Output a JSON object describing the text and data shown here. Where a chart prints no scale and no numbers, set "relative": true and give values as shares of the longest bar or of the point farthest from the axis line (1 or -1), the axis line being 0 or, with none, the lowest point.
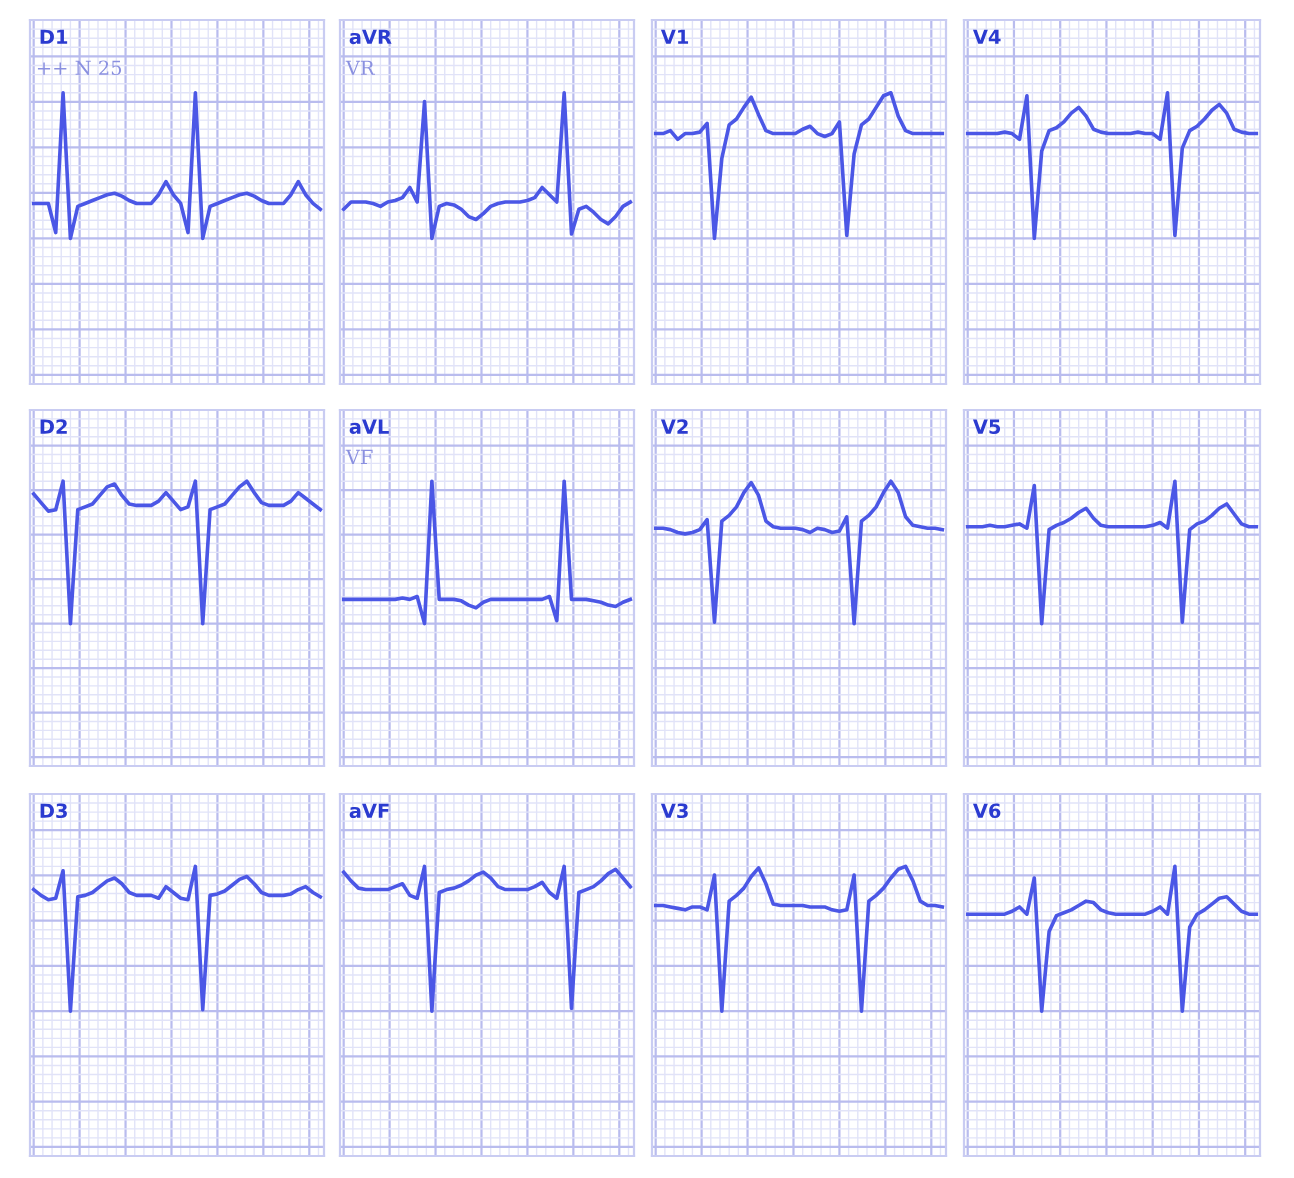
{
  "chart_data": [
    {
      "type": "line",
      "title": "D1",
      "annotations": [
        "++ N 25"
      ],
      "relative": true,
      "grid": true,
      "tick_labels": false,
      "categories": [
        null,
        null,
        null,
        null,
        null,
        null,
        null,
        null,
        null,
        null,
        null,
        null,
        null,
        null,
        null,
        null,
        null,
        null,
        null,
        null,
        null,
        null,
        null,
        null,
        null,
        null,
        null,
        null,
        null,
        null,
        null,
        null,
        null,
        null,
        null,
        null,
        null,
        null,
        null,
        null
      ],
      "series": [
        {
          "color": "#4b57e6",
          "values": [
            0.24,
            0.24,
            0.24,
            0.04,
            1.0,
            0.0,
            0.22,
            0.24,
            0.26,
            0.28,
            0.3,
            0.31,
            0.29,
            0.26,
            0.24,
            0.24,
            0.24,
            0.3,
            0.39,
            0.3,
            0.24,
            0.04,
            1.0,
            0.0,
            0.22,
            0.24,
            0.26,
            0.28,
            0.3,
            0.31,
            0.29,
            0.26,
            0.24,
            0.24,
            0.24,
            0.3,
            0.39,
            0.3,
            0.24,
            0.2
          ]
        }
      ]
    },
    {
      "type": "line",
      "title": "aVR",
      "annotations": [
        "VR"
      ],
      "relative": true,
      "grid": true,
      "tick_labels": false,
      "categories": [
        null,
        null,
        null,
        null,
        null,
        null,
        null,
        null,
        null,
        null,
        null,
        null,
        null,
        null,
        null,
        null,
        null,
        null,
        null,
        null,
        null,
        null,
        null,
        null,
        null,
        null,
        null,
        null,
        null,
        null,
        null,
        null,
        null,
        null,
        null,
        null,
        null,
        null,
        null,
        null
      ],
      "series": [
        {
          "color": "#4b57e6",
          "values": [
            0.2,
            0.25,
            0.25,
            0.25,
            0.24,
            0.22,
            0.25,
            0.26,
            0.28,
            0.35,
            0.25,
            0.94,
            0.0,
            0.22,
            0.24,
            0.23,
            0.2,
            0.15,
            0.13,
            0.17,
            0.22,
            0.24,
            0.25,
            0.25,
            0.25,
            0.26,
            0.28,
            0.35,
            0.3,
            0.25,
            1.0,
            0.03,
            0.2,
            0.22,
            0.18,
            0.13,
            0.1,
            0.15,
            0.22,
            0.25
          ]
        }
      ]
    },
    {
      "type": "line",
      "title": "V1",
      "relative": true,
      "grid": true,
      "tick_labels": false,
      "categories": [
        null,
        null,
        null,
        null,
        null,
        null,
        null,
        null,
        null,
        null,
        null,
        null,
        null,
        null,
        null,
        null,
        null,
        null,
        null,
        null,
        null,
        null,
        null,
        null,
        null,
        null,
        null,
        null,
        null,
        null,
        null,
        null,
        null,
        null,
        null,
        null,
        null,
        null,
        null,
        null
      ],
      "series": [
        {
          "color": "#4b57e6",
          "values": [
            0.72,
            0.72,
            0.74,
            0.68,
            0.72,
            0.72,
            0.73,
            0.79,
            0.0,
            0.55,
            0.78,
            0.82,
            0.9,
            0.97,
            0.85,
            0.74,
            0.72,
            0.72,
            0.72,
            0.72,
            0.75,
            0.77,
            0.72,
            0.7,
            0.72,
            0.8,
            0.02,
            0.58,
            0.78,
            0.82,
            0.9,
            0.98,
            1.0,
            0.84,
            0.74,
            0.72,
            0.72,
            0.72,
            0.72,
            0.72
          ]
        }
      ]
    },
    {
      "type": "line",
      "title": "V4",
      "relative": true,
      "grid": true,
      "tick_labels": false,
      "categories": [
        null,
        null,
        null,
        null,
        null,
        null,
        null,
        null,
        null,
        null,
        null,
        null,
        null,
        null,
        null,
        null,
        null,
        null,
        null,
        null,
        null,
        null,
        null,
        null,
        null,
        null,
        null,
        null,
        null,
        null,
        null,
        null,
        null,
        null,
        null,
        null,
        null,
        null,
        null,
        null
      ],
      "series": [
        {
          "color": "#4b57e6",
          "values": [
            0.72,
            0.72,
            0.72,
            0.72,
            0.72,
            0.73,
            0.72,
            0.68,
            0.98,
            0.0,
            0.6,
            0.74,
            0.76,
            0.8,
            0.86,
            0.9,
            0.84,
            0.75,
            0.73,
            0.72,
            0.72,
            0.72,
            0.72,
            0.73,
            0.72,
            0.72,
            0.68,
            1.0,
            0.02,
            0.62,
            0.74,
            0.77,
            0.82,
            0.88,
            0.92,
            0.86,
            0.75,
            0.73,
            0.72,
            0.72
          ]
        }
      ]
    },
    {
      "type": "line",
      "title": "D2",
      "relative": true,
      "grid": true,
      "tick_labels": false,
      "categories": [
        null,
        null,
        null,
        null,
        null,
        null,
        null,
        null,
        null,
        null,
        null,
        null,
        null,
        null,
        null,
        null,
        null,
        null,
        null,
        null,
        null,
        null,
        null,
        null,
        null,
        null,
        null,
        null,
        null,
        null,
        null,
        null,
        null,
        null,
        null,
        null,
        null,
        null,
        null,
        null
      ],
      "series": [
        {
          "color": "#4b57e6",
          "values": [
            0.91,
            0.85,
            0.79,
            0.8,
            1.0,
            0.0,
            0.8,
            0.82,
            0.84,
            0.9,
            0.96,
            0.98,
            0.9,
            0.84,
            0.83,
            0.83,
            0.83,
            0.86,
            0.92,
            0.86,
            0.8,
            0.82,
            1.0,
            0.0,
            0.8,
            0.82,
            0.84,
            0.9,
            0.96,
            1.0,
            0.92,
            0.85,
            0.83,
            0.83,
            0.83,
            0.86,
            0.92,
            0.88,
            0.84,
            0.8
          ]
        }
      ]
    },
    {
      "type": "line",
      "title": "aVL",
      "annotations": [
        "VF"
      ],
      "relative": true,
      "grid": true,
      "tick_labels": false,
      "categories": [
        null,
        null,
        null,
        null,
        null,
        null,
        null,
        null,
        null,
        null,
        null,
        null,
        null,
        null,
        null,
        null,
        null,
        null,
        null,
        null,
        null,
        null,
        null,
        null,
        null,
        null,
        null,
        null,
        null,
        null,
        null,
        null,
        null,
        null,
        null,
        null,
        null,
        null,
        null,
        null
      ],
      "series": [
        {
          "color": "#4b57e6",
          "values": [
            0.17,
            0.17,
            0.17,
            0.17,
            0.17,
            0.17,
            0.17,
            0.17,
            0.18,
            0.17,
            0.19,
            0.0,
            1.0,
            0.17,
            0.17,
            0.17,
            0.16,
            0.13,
            0.11,
            0.15,
            0.17,
            0.17,
            0.17,
            0.17,
            0.17,
            0.17,
            0.17,
            0.17,
            0.19,
            0.02,
            1.0,
            0.17,
            0.17,
            0.17,
            0.16,
            0.15,
            0.13,
            0.12,
            0.15,
            0.17
          ]
        }
      ]
    },
    {
      "type": "line",
      "title": "V2",
      "relative": true,
      "grid": true,
      "tick_labels": false,
      "categories": [
        null,
        null,
        null,
        null,
        null,
        null,
        null,
        null,
        null,
        null,
        null,
        null,
        null,
        null,
        null,
        null,
        null,
        null,
        null,
        null,
        null,
        null,
        null,
        null,
        null,
        null,
        null,
        null,
        null,
        null,
        null,
        null,
        null,
        null,
        null,
        null,
        null,
        null,
        null,
        null
      ],
      "series": [
        {
          "color": "#4b57e6",
          "values": [
            0.67,
            0.67,
            0.66,
            0.64,
            0.63,
            0.64,
            0.66,
            0.73,
            0.01,
            0.72,
            0.76,
            0.82,
            0.92,
            0.99,
            0.9,
            0.72,
            0.68,
            0.67,
            0.67,
            0.67,
            0.66,
            0.64,
            0.67,
            0.66,
            0.64,
            0.65,
            0.75,
            0.0,
            0.72,
            0.76,
            0.82,
            0.92,
            1.0,
            0.92,
            0.75,
            0.69,
            0.68,
            0.67,
            0.67,
            0.66
          ]
        }
      ]
    },
    {
      "type": "line",
      "title": "V5",
      "relative": true,
      "grid": true,
      "tick_labels": false,
      "categories": [
        null,
        null,
        null,
        null,
        null,
        null,
        null,
        null,
        null,
        null,
        null,
        null,
        null,
        null,
        null,
        null,
        null,
        null,
        null,
        null,
        null,
        null,
        null,
        null,
        null,
        null,
        null,
        null,
        null,
        null,
        null,
        null,
        null,
        null,
        null,
        null,
        null,
        null,
        null,
        null
      ],
      "series": [
        {
          "color": "#4b57e6",
          "values": [
            0.68,
            0.68,
            0.68,
            0.69,
            0.68,
            0.68,
            0.69,
            0.7,
            0.67,
            0.97,
            0.0,
            0.66,
            0.69,
            0.71,
            0.74,
            0.78,
            0.81,
            0.74,
            0.69,
            0.68,
            0.68,
            0.68,
            0.68,
            0.68,
            0.68,
            0.69,
            0.71,
            0.67,
            1.0,
            0.01,
            0.66,
            0.7,
            0.72,
            0.76,
            0.81,
            0.84,
            0.77,
            0.7,
            0.68,
            0.68
          ]
        }
      ]
    },
    {
      "type": "line",
      "title": "D3",
      "relative": true,
      "grid": true,
      "tick_labels": false,
      "categories": [
        null,
        null,
        null,
        null,
        null,
        null,
        null,
        null,
        null,
        null,
        null,
        null,
        null,
        null,
        null,
        null,
        null,
        null,
        null,
        null,
        null,
        null,
        null,
        null,
        null,
        null,
        null,
        null,
        null,
        null,
        null,
        null,
        null,
        null,
        null,
        null,
        null,
        null,
        null,
        null
      ],
      "series": [
        {
          "color": "#4b57e6",
          "values": [
            0.84,
            0.8,
            0.77,
            0.78,
            0.97,
            0.0,
            0.79,
            0.8,
            0.82,
            0.86,
            0.9,
            0.92,
            0.88,
            0.82,
            0.8,
            0.8,
            0.8,
            0.78,
            0.86,
            0.82,
            0.78,
            0.77,
            1.0,
            0.01,
            0.8,
            0.81,
            0.83,
            0.87,
            0.91,
            0.93,
            0.88,
            0.82,
            0.8,
            0.8,
            0.8,
            0.81,
            0.84,
            0.86,
            0.82,
            0.79
          ]
        }
      ]
    },
    {
      "type": "line",
      "title": "aVF",
      "relative": true,
      "grid": true,
      "tick_labels": false,
      "categories": [
        null,
        null,
        null,
        null,
        null,
        null,
        null,
        null,
        null,
        null,
        null,
        null,
        null,
        null,
        null,
        null,
        null,
        null,
        null,
        null,
        null,
        null,
        null,
        null,
        null,
        null,
        null,
        null,
        null,
        null,
        null,
        null,
        null,
        null,
        null,
        null,
        null,
        null,
        null,
        null
      ],
      "series": [
        {
          "color": "#4b57e6",
          "values": [
            0.96,
            0.9,
            0.85,
            0.84,
            0.84,
            0.84,
            0.84,
            0.86,
            0.88,
            0.8,
            0.78,
            1.0,
            0.0,
            0.82,
            0.84,
            0.85,
            0.87,
            0.9,
            0.94,
            0.96,
            0.92,
            0.86,
            0.84,
            0.84,
            0.84,
            0.84,
            0.86,
            0.89,
            0.82,
            0.78,
            1.0,
            0.02,
            0.82,
            0.84,
            0.86,
            0.9,
            0.95,
            0.98,
            0.92,
            0.86
          ]
        }
      ]
    },
    {
      "type": "line",
      "title": "V3",
      "relative": true,
      "grid": true,
      "tick_labels": false,
      "categories": [
        null,
        null,
        null,
        null,
        null,
        null,
        null,
        null,
        null,
        null,
        null,
        null,
        null,
        null,
        null,
        null,
        null,
        null,
        null,
        null,
        null,
        null,
        null,
        null,
        null,
        null,
        null,
        null,
        null,
        null,
        null,
        null,
        null,
        null,
        null,
        null,
        null,
        null,
        null,
        null
      ],
      "series": [
        {
          "color": "#4b57e6",
          "values": [
            0.73,
            0.73,
            0.72,
            0.71,
            0.7,
            0.72,
            0.72,
            0.7,
            0.94,
            0.0,
            0.76,
            0.8,
            0.85,
            0.93,
            0.99,
            0.88,
            0.74,
            0.73,
            0.73,
            0.73,
            0.73,
            0.72,
            0.72,
            0.72,
            0.7,
            0.69,
            0.7,
            0.94,
            0.0,
            0.76,
            0.8,
            0.85,
            0.92,
            0.98,
            1.0,
            0.9,
            0.76,
            0.73,
            0.73,
            0.72
          ]
        }
      ]
    },
    {
      "type": "line",
      "title": "V6",
      "relative": true,
      "grid": true,
      "tick_labels": false,
      "categories": [
        null,
        null,
        null,
        null,
        null,
        null,
        null,
        null,
        null,
        null,
        null,
        null,
        null,
        null,
        null,
        null,
        null,
        null,
        null,
        null,
        null,
        null,
        null,
        null,
        null,
        null,
        null,
        null,
        null,
        null,
        null,
        null,
        null,
        null,
        null,
        null,
        null,
        null,
        null,
        null
      ],
      "series": [
        {
          "color": "#4b57e6",
          "values": [
            0.67,
            0.67,
            0.67,
            0.67,
            0.67,
            0.67,
            0.69,
            0.72,
            0.67,
            0.92,
            0.0,
            0.55,
            0.66,
            0.68,
            0.7,
            0.73,
            0.76,
            0.75,
            0.7,
            0.68,
            0.67,
            0.67,
            0.67,
            0.67,
            0.67,
            0.69,
            0.72,
            0.67,
            1.0,
            0.0,
            0.58,
            0.67,
            0.7,
            0.74,
            0.78,
            0.79,
            0.74,
            0.69,
            0.67,
            0.67
          ]
        }
      ]
    }
  ]
}
